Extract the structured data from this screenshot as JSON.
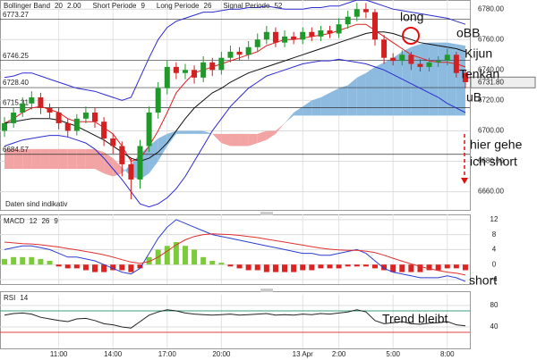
{
  "chart_data": [
    {
      "type": "candlestick",
      "header": [
        [
          "Bollinger Band",
          "20",
          "2.00"
        ],
        [
          "Short Periode",
          "9"
        ],
        [
          "Long Periode",
          "26"
        ],
        [
          "Signal Periode",
          "52"
        ]
      ],
      "categories": [
        null,
        null,
        null,
        null,
        null,
        null,
        "11:00",
        null,
        null,
        null,
        null,
        null,
        "14:00",
        null,
        null,
        null,
        null,
        null,
        "17:00",
        null,
        null,
        null,
        null,
        null,
        "20:00",
        null,
        null,
        null,
        null,
        null,
        null,
        null,
        null,
        "13 Apr",
        null,
        null,
        null,
        "2:00",
        null,
        null,
        null,
        null,
        null,
        "5:00",
        null,
        null,
        null,
        null,
        null,
        "8:00",
        null,
        null
      ],
      "open": [
        6700,
        6705,
        6712,
        6718,
        6722,
        6715,
        6712,
        6705,
        6700,
        6708,
        6712,
        6706,
        6695,
        6690,
        6678,
        6668,
        6690,
        6712,
        6728,
        6742,
        6738,
        6740,
        6735,
        6745,
        6740,
        6748,
        6752,
        6750,
        6755,
        6760,
        6765,
        6758,
        6762,
        6760,
        6765,
        6762,
        6766,
        6764,
        6770,
        6775,
        6780,
        6778,
        6760,
        6748,
        6746,
        6750,
        6744,
        6742,
        6745,
        6746,
        6750,
        6738
      ],
      "high": [
        6709,
        6715,
        6722,
        6726,
        6725,
        6718,
        6715,
        6708,
        6711,
        6716,
        6715,
        6709,
        6698,
        6693,
        6682,
        6694,
        6716,
        6732,
        6746,
        6745,
        6744,
        6743,
        6749,
        6748,
        6752,
        6756,
        6755,
        6759,
        6764,
        6769,
        6768,
        6766,
        6765,
        6768,
        6768,
        6769,
        6769,
        6774,
        6779,
        6784,
        6784,
        6780,
        6763,
        6751,
        6753,
        6752,
        6747,
        6748,
        6749,
        6754,
        6752,
        6740
      ],
      "low": [
        6696,
        6702,
        6709,
        6714,
        6711,
        6708,
        6701,
        6696,
        6697,
        6705,
        6702,
        6690,
        6685,
        6670,
        6655,
        6662,
        6686,
        6708,
        6724,
        6734,
        6734,
        6731,
        6732,
        6736,
        6737,
        6745,
        6746,
        6747,
        6752,
        6757,
        6755,
        6755,
        6757,
        6757,
        6759,
        6759,
        6761,
        6761,
        6767,
        6772,
        6774,
        6756,
        6744,
        6743,
        6743,
        6740,
        6739,
        6739,
        6742,
        6743,
        6735,
        6728
      ],
      "close": [
        6705,
        6712,
        6718,
        6722,
        6715,
        6712,
        6705,
        6700,
        6708,
        6712,
        6706,
        6695,
        6690,
        6678,
        6668,
        6690,
        6712,
        6728,
        6742,
        6738,
        6740,
        6735,
        6745,
        6740,
        6748,
        6752,
        6750,
        6755,
        6760,
        6765,
        6758,
        6762,
        6760,
        6765,
        6762,
        6766,
        6764,
        6770,
        6775,
        6780,
        6778,
        6760,
        6748,
        6746,
        6750,
        6744,
        6742,
        6745,
        6746,
        6750,
        6738,
        6732
      ],
      "up_color": "#1f9a2a",
      "down_color": "#d42020",
      "lines": [
        {
          "color": "#2b2bd0",
          "values": [
            6735,
            6736,
            6738,
            6738,
            6736,
            6734,
            6732,
            6730,
            6728,
            6727,
            6726,
            6724,
            6722,
            6720,
            6722,
            6735,
            6748,
            6760,
            6768,
            6772,
            6774,
            6776,
            6778,
            6778,
            6779,
            6780,
            6780,
            6781,
            6781,
            6782,
            6781,
            6780,
            6780,
            6780,
            6781,
            6781,
            6782,
            6782,
            6784,
            6786,
            6786,
            6784,
            6782,
            6780,
            6779,
            6778,
            6777,
            6776,
            6775,
            6774,
            6772,
            6770
          ]
        },
        {
          "color": "#2b2bd0",
          "values": [
            6690,
            6692,
            6694,
            6695,
            6696,
            6697,
            6697,
            6696,
            6694,
            6692,
            6688,
            6682,
            6675,
            6668,
            6660,
            6652,
            6650,
            6652,
            6656,
            6662,
            6670,
            6680,
            6690,
            6700,
            6708,
            6716,
            6722,
            6728,
            6732,
            6736,
            6738,
            6740,
            6742,
            6744,
            6745,
            6746,
            6746,
            6747,
            6746,
            6745,
            6744,
            6742,
            6740,
            6737,
            6734,
            6731,
            6728,
            6725,
            6722,
            6718,
            6715,
            6712
          ]
        },
        {
          "color": "#e02020",
          "values": [
            6705,
            6708,
            6712,
            6715,
            6716,
            6714,
            6712,
            6708,
            6706,
            6706,
            6706,
            6702,
            6698,
            6690,
            6680,
            6682,
            6690,
            6700,
            6712,
            6725,
            6732,
            6738,
            6740,
            6742,
            6744,
            6746,
            6748,
            6750,
            6752,
            6756,
            6758,
            6760,
            6760,
            6761,
            6762,
            6763,
            6764,
            6766,
            6768,
            6770,
            6770,
            6766,
            6762,
            6758,
            6754,
            6750,
            6748,
            6746,
            6745,
            6745,
            6744,
            6742
          ]
        },
        {
          "color": "#111111",
          "values": [
            6705,
            6706,
            6707,
            6708,
            6708,
            6708,
            6707,
            6705,
            6703,
            6700,
            6697,
            6694,
            6690,
            6686,
            6682,
            6680,
            6682,
            6686,
            6692,
            6700,
            6708,
            6715,
            6720,
            6725,
            6728,
            6732,
            6735,
            6738,
            6740,
            6742,
            6744,
            6746,
            6748,
            6750,
            6752,
            6754,
            6756,
            6758,
            6760,
            6762,
            6764,
            6765,
            6765,
            6764,
            6762,
            6760,
            6758,
            6757,
            6756,
            6755,
            6754,
            6752
          ]
        }
      ],
      "cloud": {
        "up_color": "#8dbbe0",
        "down_color": "#f2a3a3",
        "span_a": [
          6675,
          6675,
          6675,
          6675,
          6675,
          6675,
          6675,
          6675,
          6675,
          6675,
          6675,
          6672,
          6670,
          6672,
          6678,
          6685,
          6690,
          6695,
          6698,
          6700,
          6700,
          6700,
          6700,
          6698,
          6692,
          6690,
          6690,
          6690,
          6692,
          6694,
          6698,
          6705,
          6712,
          6716,
          6720,
          6722,
          6725,
          6728,
          6730,
          6735,
          6738,
          6742,
          6745,
          6748,
          6752,
          6755,
          6757,
          6758,
          6758,
          6758,
          6757,
          6756
        ],
        "span_b": [
          6688,
          6688,
          6688,
          6688,
          6688,
          6688,
          6688,
          6688,
          6688,
          6688,
          6688,
          6686,
          6682,
          6676,
          6670,
          6668,
          6672,
          6680,
          6690,
          6698,
          6698,
          6698,
          6698,
          6698,
          6698,
          6698,
          6698,
          6698,
          6698,
          6700,
          6700,
          6705,
          6710,
          6710,
          6710,
          6710,
          6710,
          6710,
          6710,
          6710,
          6710,
          6710,
          6710,
          6710,
          6710,
          6710,
          6710,
          6710,
          6710,
          6710,
          6710,
          6710
        ]
      },
      "levels": [
        6773.27,
        6746.25,
        {
          "value": 6728.4,
          "label": "6728.40"
        },
        6715.31,
        6684.57
      ],
      "last_price": {
        "value": 6731.8,
        "label": "6731.80"
      },
      "ylim": [
        6648,
        6786
      ],
      "yticks": [
        {
          "value": 6660,
          "label": "6660.00"
        },
        {
          "value": 6680,
          "label": "6680.00"
        },
        {
          "value": 6700,
          "label": "6700.00"
        },
        {
          "value": 6720,
          "label": "6720.00"
        },
        {
          "value": 6740,
          "label": "6740.00"
        },
        {
          "value": 6760,
          "label": "6760.00"
        },
        {
          "value": 6780,
          "label": "6780.00"
        }
      ],
      "annotations": [
        "long",
        "oBB",
        "Kijun",
        "Tenkan",
        "uB",
        "hier gehe",
        "ich short"
      ],
      "note": "Daten sind indikativ",
      "grid": true
    },
    {
      "type": "macd",
      "header": [
        [
          "MACD",
          "12",
          "26",
          "9"
        ]
      ],
      "series": [
        {
          "color": "#2a3fd0",
          "values": [
            4,
            4.5,
            5,
            5,
            4.5,
            4,
            3,
            2,
            2,
            1.5,
            1,
            0,
            -1,
            -2,
            -2.5,
            -1,
            3,
            7,
            10,
            12,
            11,
            10,
            9,
            8,
            7.5,
            7,
            6.5,
            6,
            5.5,
            5,
            4.5,
            4,
            3.5,
            3,
            3,
            2.5,
            2.5,
            3,
            3.5,
            4,
            3,
            1,
            -1,
            -2,
            -2.5,
            -3,
            -3.5,
            -3.5,
            -3.5,
            -3,
            -3.5,
            -4.5
          ]
        },
        {
          "color": "#e03030",
          "values": [
            6,
            5.8,
            5.6,
            5.5,
            5.3,
            5,
            4.7,
            4.3,
            3.9,
            3.5,
            3.1,
            2.6,
            2,
            1.3,
            0.7,
            0.3,
            0.8,
            2,
            3.6,
            5.3,
            6.6,
            7.5,
            8,
            8.2,
            8.1,
            8,
            7.8,
            7.5,
            7.2,
            6.8,
            6.4,
            6,
            5.6,
            5.2,
            4.8,
            4.4,
            4.1,
            3.9,
            3.8,
            3.8,
            3.6,
            3.2,
            2.5,
            1.7,
            0.9,
            0.2,
            -0.5,
            -1.1,
            -1.6,
            -2,
            -2.3,
            -2.8
          ]
        }
      ],
      "histogram": {
        "up_color": "#7ccc3a",
        "down_color": "#dd2222",
        "values": [
          1.5,
          2,
          2,
          2,
          1.5,
          1,
          -0.5,
          -1,
          -1,
          -1.5,
          -2,
          -2,
          -1.5,
          -1.5,
          -2,
          -1,
          2,
          4,
          5,
          6,
          5,
          4,
          2,
          1,
          0.5,
          -0.5,
          -1,
          -1.5,
          -1.5,
          -2,
          -2,
          -2,
          -2,
          -1.5,
          -1.5,
          -1,
          -1,
          -1,
          -0.5,
          -0.5,
          -0.5,
          -1,
          -1.5,
          -2,
          -2,
          -2,
          -2,
          -1.5,
          -1.5,
          -1,
          -1,
          -1.5
        ]
      },
      "ylim": [
        -5.2,
        13.4
      ],
      "yticks": [
        -4,
        0,
        4,
        8,
        12
      ],
      "annotations": [
        "short"
      ],
      "grid": true
    },
    {
      "type": "rsi",
      "header": [
        [
          "RSI",
          "14"
        ]
      ],
      "values": [
        62,
        65,
        66,
        64,
        58,
        55,
        52,
        50,
        55,
        56,
        52,
        46,
        44,
        40,
        38,
        50,
        62,
        68,
        72,
        70,
        66,
        64,
        63,
        62,
        63,
        64,
        62,
        63,
        64,
        65,
        62,
        63,
        62,
        64,
        63,
        65,
        64,
        66,
        68,
        72,
        68,
        52,
        46,
        48,
        50,
        46,
        45,
        47,
        48,
        50,
        44,
        42
      ],
      "color": "#222222",
      "bands": [
        {
          "value": 70,
          "color": "#3aa07a"
        },
        {
          "value": 30,
          "color": "#e04040"
        }
      ],
      "ylim": [
        0,
        100
      ],
      "yticks": [
        40,
        80
      ],
      "annotations": [
        "Trend bleibt"
      ],
      "grid": true
    }
  ]
}
